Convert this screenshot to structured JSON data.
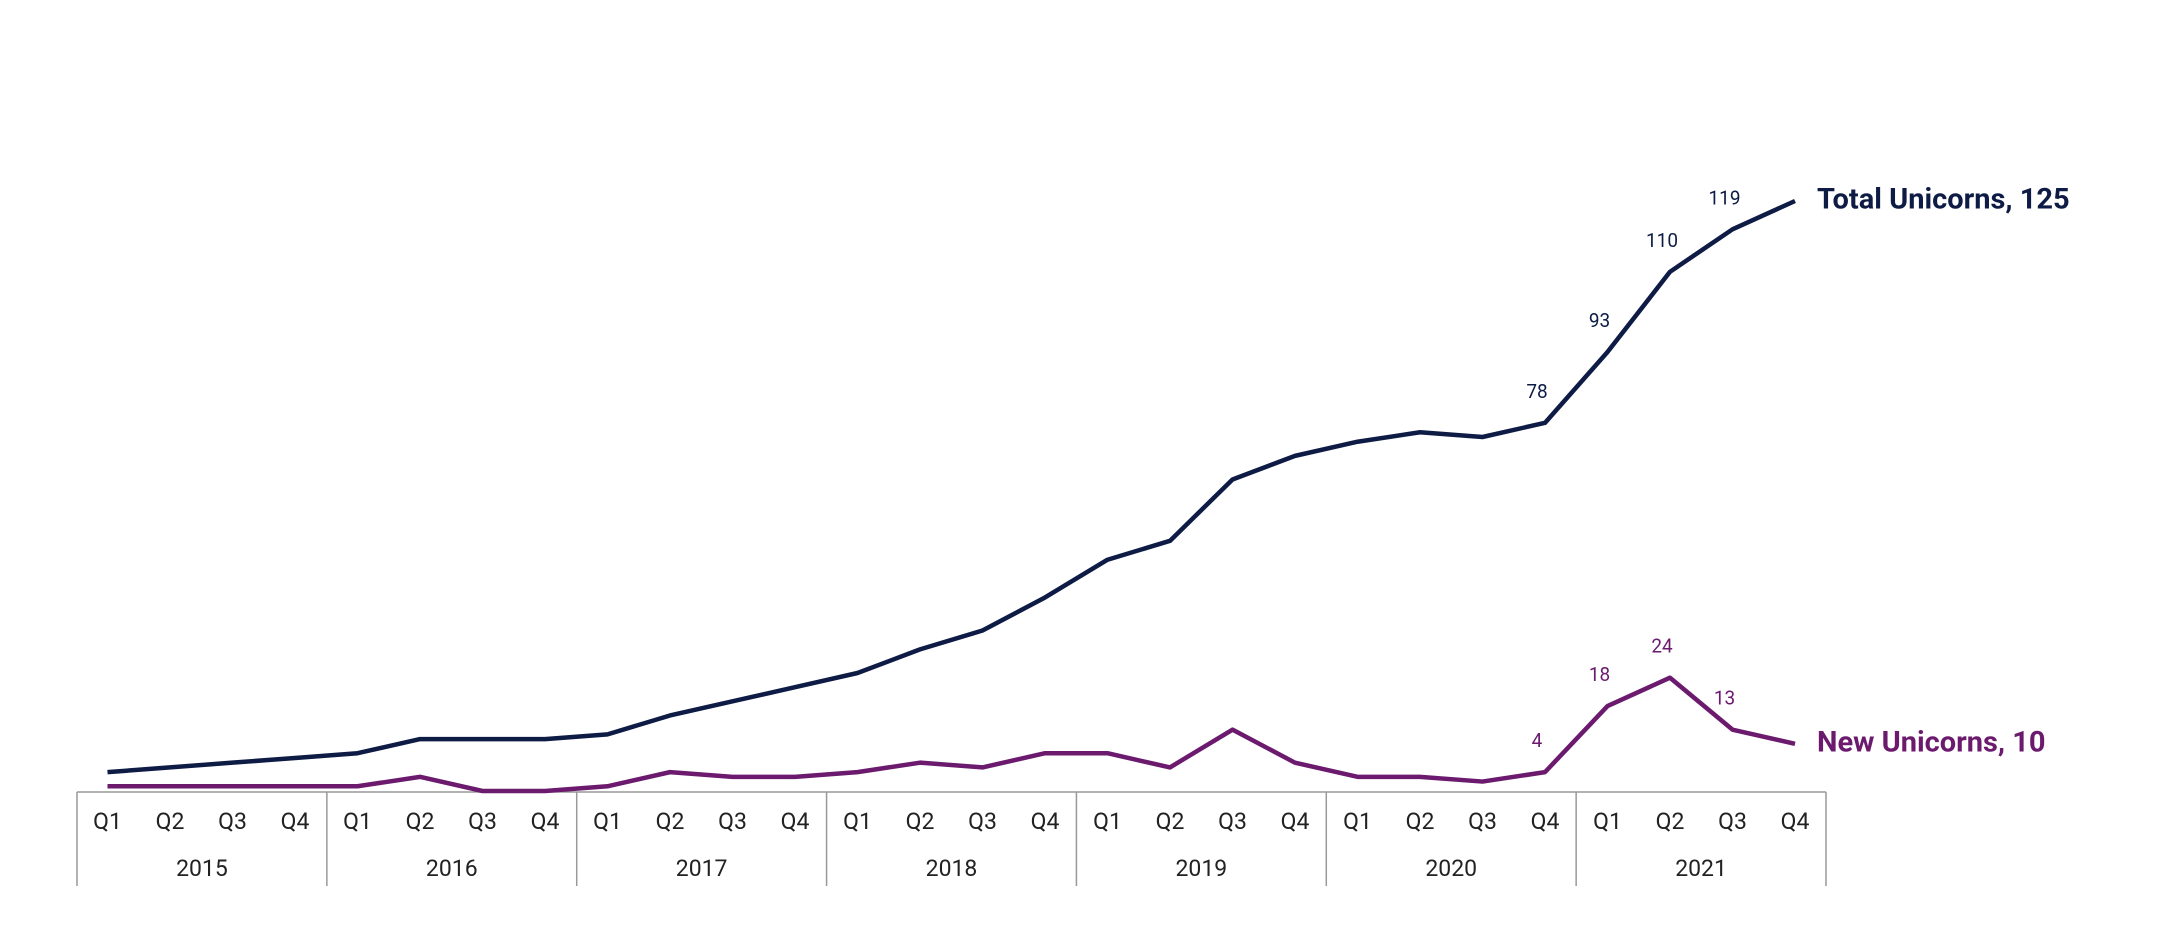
{
  "chart_data": {
    "type": "line",
    "categories": [
      "Q1",
      "Q2",
      "Q3",
      "Q4",
      "Q1",
      "Q2",
      "Q3",
      "Q4",
      "Q1",
      "Q2",
      "Q3",
      "Q4",
      "Q1",
      "Q2",
      "Q3",
      "Q4",
      "Q1",
      "Q2",
      "Q3",
      "Q4",
      "Q1",
      "Q2",
      "Q3",
      "Q4",
      "Q1",
      "Q2",
      "Q3",
      "Q4"
    ],
    "category_groups": [
      "2015",
      "2016",
      "2017",
      "2018",
      "2019",
      "2020",
      "2021"
    ],
    "ylim": [
      0,
      125
    ],
    "series": [
      {
        "name": "Total Unicorns, 125",
        "color": "#0d1b45",
        "values": [
          4,
          5,
          6,
          7,
          8,
          11,
          11,
          11,
          12,
          16,
          19,
          22,
          25,
          30,
          34,
          41,
          49,
          53,
          66,
          71,
          74,
          76,
          75,
          78,
          93,
          110,
          119,
          125
        ],
        "value_labels": [
          null,
          null,
          null,
          null,
          null,
          null,
          null,
          null,
          null,
          null,
          null,
          null,
          null,
          null,
          null,
          null,
          null,
          null,
          null,
          null,
          null,
          null,
          null,
          "78",
          "93",
          "110",
          "119",
          null
        ]
      },
      {
        "name": "New Unicorns, 10",
        "color": "#6b1a6e",
        "values": [
          1,
          1,
          1,
          1,
          1,
          3,
          0,
          0,
          1,
          4,
          3,
          3,
          4,
          6,
          5,
          8,
          8,
          5,
          13,
          6,
          3,
          3,
          2,
          4,
          18,
          24,
          13,
          10
        ],
        "value_labels": [
          null,
          null,
          null,
          null,
          null,
          null,
          null,
          null,
          null,
          null,
          null,
          null,
          null,
          null,
          null,
          null,
          null,
          null,
          null,
          null,
          null,
          null,
          null,
          "4",
          "18",
          "24",
          "13",
          null
        ]
      }
    ]
  }
}
